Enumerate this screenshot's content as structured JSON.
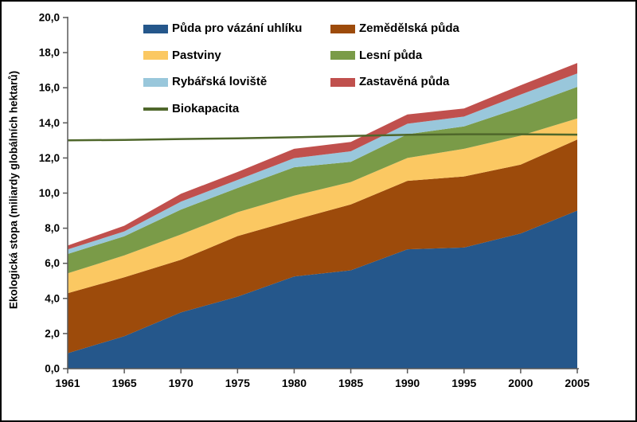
{
  "y_axis": {
    "title": "Ekologická stopa (miliardy globálních hektarů)",
    "tick_labels": [
      "0,0",
      "2,0",
      "4,0",
      "6,0",
      "8,0",
      "10,0",
      "12,0",
      "14,0",
      "16,0",
      "18,0",
      "20,0"
    ],
    "min": 0,
    "max": 20,
    "step": 2
  },
  "x_axis": {
    "labels": [
      "1961",
      "1965",
      "1970",
      "1975",
      "1980",
      "1985",
      "1990",
      "1995",
      "2000",
      "2005"
    ]
  },
  "legend": {
    "items": [
      {
        "id": "carbon-land",
        "label": "Půda pro vázání uhlíku",
        "swatch": "box",
        "color": "#25578B",
        "col": 0,
        "row": 0
      },
      {
        "id": "cropland",
        "label": "Zemědělská půda",
        "swatch": "box",
        "color": "#9D4B0B",
        "col": 1,
        "row": 0
      },
      {
        "id": "grazing-land",
        "label": "Pastviny",
        "swatch": "box",
        "color": "#FBC862",
        "col": 0,
        "row": 1
      },
      {
        "id": "forest-land",
        "label": "Lesní půda",
        "swatch": "box",
        "color": "#7A9B48",
        "col": 1,
        "row": 1
      },
      {
        "id": "fishing-grounds",
        "label": "Rybářská loviště",
        "swatch": "box",
        "color": "#99C7DB",
        "col": 0,
        "row": 2
      },
      {
        "id": "built-up-land",
        "label": "Zastavěná půda",
        "swatch": "box",
        "color": "#C0504D",
        "col": 1,
        "row": 2
      },
      {
        "id": "biocapacity",
        "label": "Biokapacita",
        "swatch": "line",
        "color": "#4F672B",
        "col": 0,
        "row": 3
      }
    ]
  },
  "chart_data": {
    "type": "area",
    "stacked": true,
    "title": "",
    "xlabel": "",
    "ylabel": "Ekologická stopa (miliardy globálních hektarů)",
    "ylim": [
      0,
      20
    ],
    "grid": false,
    "legend_position": "top",
    "axis_color": "#595959",
    "x": [
      1961,
      1965,
      1970,
      1975,
      1980,
      1985,
      1990,
      1995,
      2000,
      2005
    ],
    "series": [
      {
        "id": "carbon-land",
        "name": "Půda pro vázání uhlíku",
        "color": "#25578B",
        "values": [
          0.88,
          1.85,
          3.2,
          4.1,
          5.25,
          5.6,
          6.8,
          6.9,
          7.7,
          9.0
        ]
      },
      {
        "id": "cropland",
        "name": "Zemědělská půda",
        "color": "#9D4B0B",
        "values": [
          3.42,
          3.35,
          3.0,
          3.45,
          3.22,
          3.75,
          3.9,
          4.05,
          3.92,
          4.05
        ]
      },
      {
        "id": "grazing-land",
        "name": "Pastviny",
        "color": "#FBC862",
        "values": [
          1.13,
          1.25,
          1.44,
          1.36,
          1.38,
          1.28,
          1.3,
          1.57,
          1.65,
          1.2
        ]
      },
      {
        "id": "forest-land",
        "name": "Lesní půda",
        "color": "#7A9B48",
        "values": [
          1.1,
          1.09,
          1.42,
          1.38,
          1.62,
          1.15,
          1.35,
          1.28,
          1.6,
          1.8
        ]
      },
      {
        "id": "fishing-grounds",
        "name": "Rybářská loviště",
        "color": "#99C7DB",
        "values": [
          0.26,
          0.28,
          0.45,
          0.46,
          0.52,
          0.6,
          0.6,
          0.56,
          0.74,
          0.76
        ]
      },
      {
        "id": "built-up-land",
        "name": "Zastavěná půda",
        "color": "#C0504D",
        "values": [
          0.22,
          0.32,
          0.45,
          0.45,
          0.53,
          0.53,
          0.53,
          0.46,
          0.53,
          0.6
        ]
      }
    ],
    "line_series": {
      "id": "biocapacity",
      "name": "Biokapacita",
      "color": "#4F672B",
      "values": [
        13.0,
        13.03,
        13.08,
        13.12,
        13.18,
        13.25,
        13.32,
        13.35,
        13.35,
        13.33
      ]
    }
  }
}
